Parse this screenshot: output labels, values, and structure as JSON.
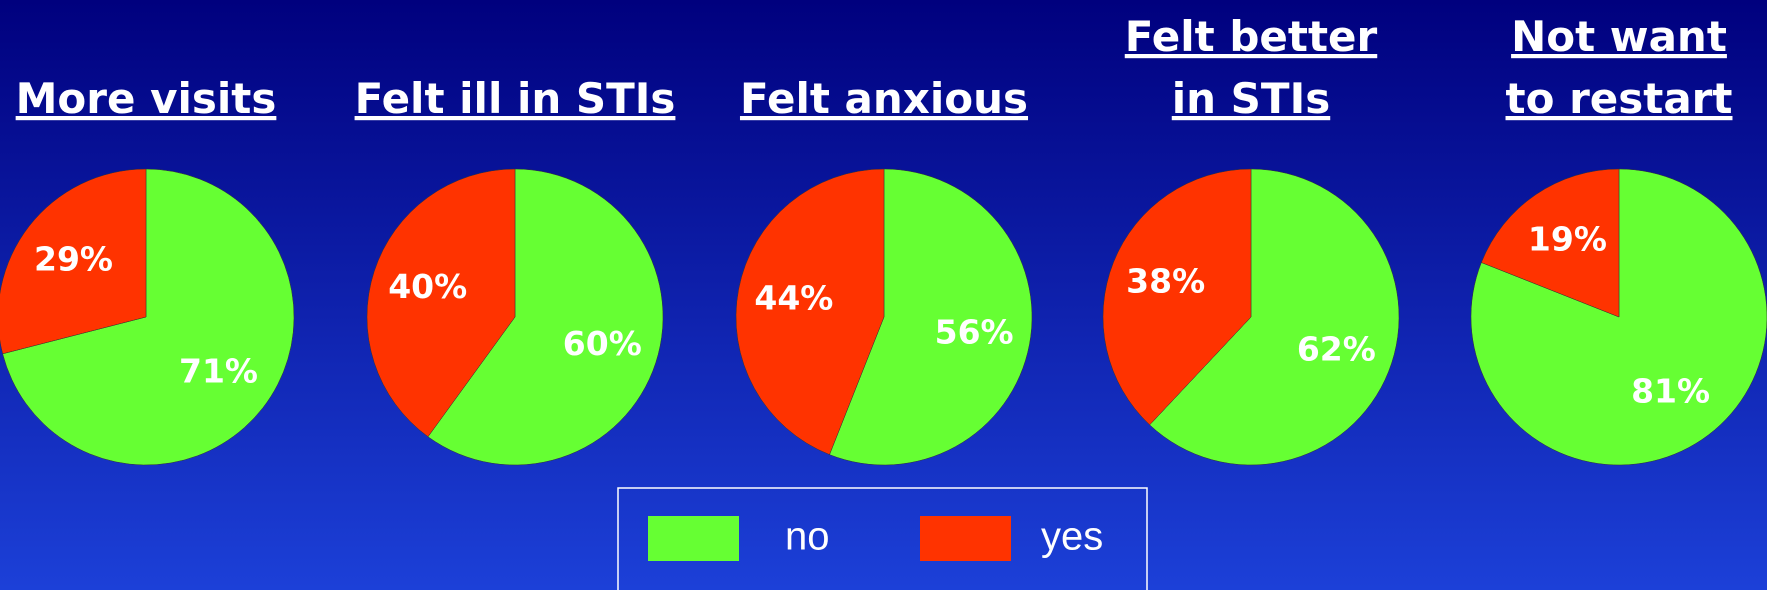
{
  "chart_data": [
    {
      "type": "pie",
      "title": [
        "More visits"
      ],
      "categories": [
        "no",
        "yes"
      ],
      "values": [
        71,
        29
      ],
      "value_labels": [
        "71%",
        "29%"
      ],
      "colors": [
        "#66ff33",
        "#ff3300"
      ]
    },
    {
      "type": "pie",
      "title": [
        "Felt ill in STIs"
      ],
      "categories": [
        "no",
        "yes"
      ],
      "values": [
        60,
        40
      ],
      "value_labels": [
        "60%",
        "40%"
      ],
      "colors": [
        "#66ff33",
        "#ff3300"
      ]
    },
    {
      "type": "pie",
      "title": [
        "Felt anxious"
      ],
      "categories": [
        "no",
        "yes"
      ],
      "values": [
        56,
        44
      ],
      "value_labels": [
        "56%",
        "44%"
      ],
      "colors": [
        "#66ff33",
        "#ff3300"
      ]
    },
    {
      "type": "pie",
      "title": [
        "Felt better",
        "in STIs"
      ],
      "categories": [
        "no",
        "yes"
      ],
      "values": [
        62,
        38
      ],
      "value_labels": [
        "62%",
        "38%"
      ],
      "colors": [
        "#66ff33",
        "#ff3300"
      ]
    },
    {
      "type": "pie",
      "title": [
        "Not want",
        "to restart"
      ],
      "categories": [
        "no",
        "yes"
      ],
      "values": [
        81,
        19
      ],
      "value_labels": [
        "81%",
        "19%"
      ],
      "colors": [
        "#66ff33",
        "#ff3300"
      ]
    }
  ],
  "legend": {
    "labels": [
      "no",
      "yes"
    ],
    "colors": [
      "#66ff33",
      "#ff3300"
    ]
  }
}
